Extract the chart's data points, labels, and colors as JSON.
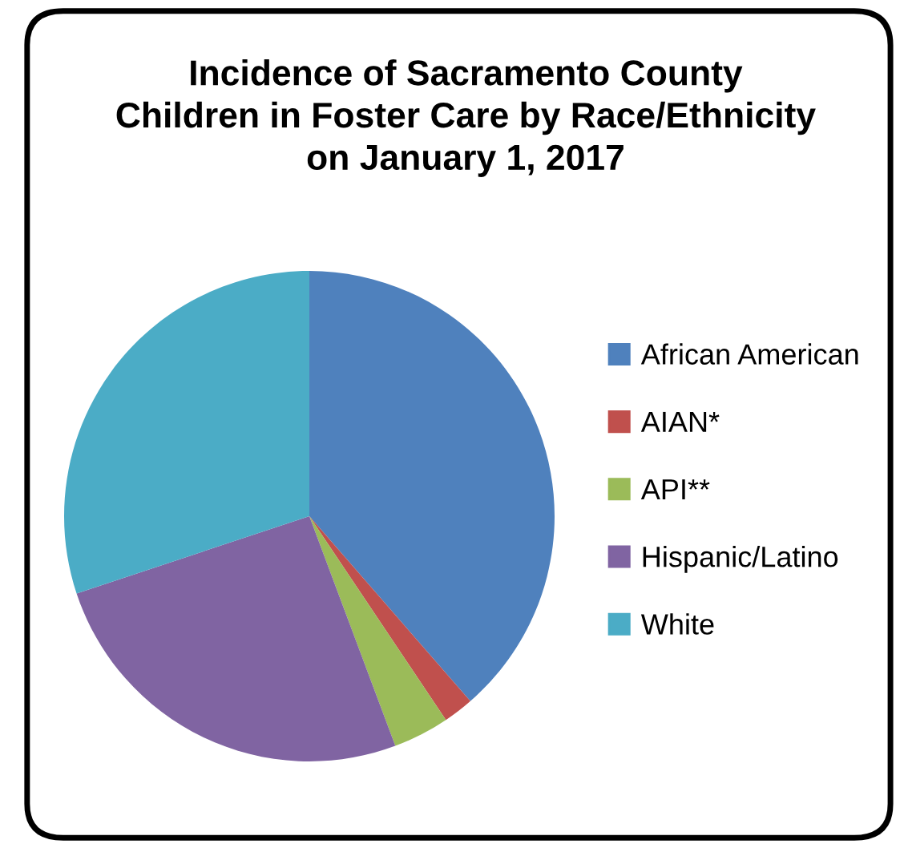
{
  "chart_data": {
    "type": "pie",
    "title": "Incidence of Sacramento County Children in Foster Care by Race/Ethnicity on January 1, 2017",
    "categories": [
      "African American",
      "AIAN*",
      "API**",
      "Hispanic/Latino",
      "White"
    ],
    "values": [
      38.6,
      2.0,
      3.7,
      25.6,
      30.1
    ],
    "colors": [
      "#4f81bd",
      "#c0504d",
      "#9bbb59",
      "#8064a2",
      "#4bacc6"
    ],
    "legend": "right"
  }
}
